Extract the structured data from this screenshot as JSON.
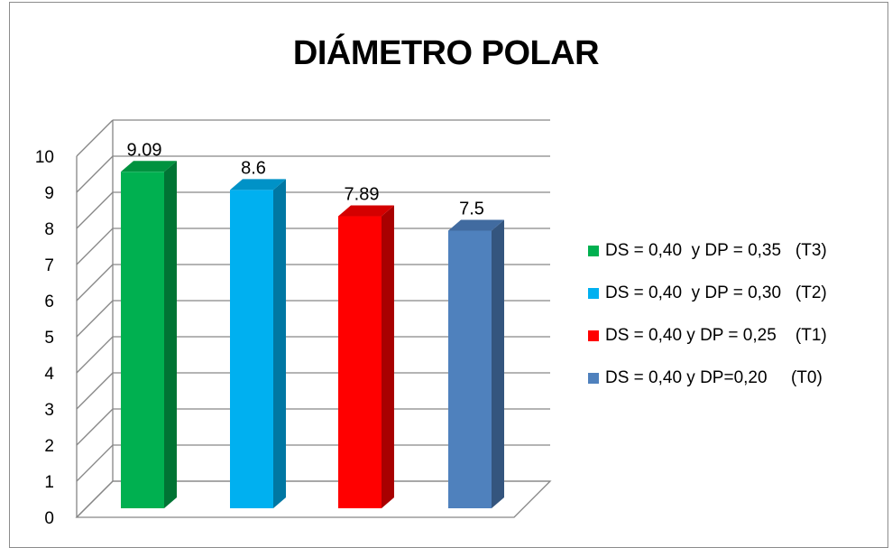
{
  "chart_data": {
    "type": "bar",
    "title": "DIÁMETRO POLAR",
    "categories": [
      "DS = 0,40  y DP = 0,35   (T3)",
      "DS = 0,40  y DP = 0,30   (T2)",
      "DS = 0,40 y DP = 0,25    (T1)",
      "DS = 0,40 y DP=0,20     (T0)"
    ],
    "values": [
      9.09,
      8.6,
      7.89,
      7.5
    ],
    "data_labels": [
      "9.09",
      "8.6",
      "7.89",
      "7.5"
    ],
    "colors": [
      "#00b050",
      "#00b0f0",
      "#ff0000",
      "#4f81bd"
    ],
    "side_colors": [
      "#007434",
      "#0077a3",
      "#a80000",
      "#34557e"
    ],
    "top_colors": [
      "#00923f",
      "#0092c7",
      "#d40000",
      "#416ba0"
    ],
    "yticks": [
      "0",
      "1",
      "2",
      "3",
      "4",
      "5",
      "6",
      "7",
      "8",
      "9",
      "10"
    ],
    "ylim": [
      0,
      10
    ],
    "grid": true,
    "legend_position": "right",
    "xlabel": "",
    "ylabel": ""
  }
}
